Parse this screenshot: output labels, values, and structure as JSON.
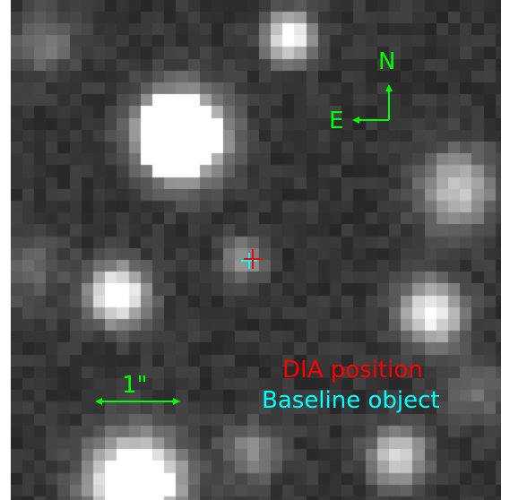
{
  "compass": {
    "north": "N",
    "east": "E"
  },
  "scale_bar": {
    "label": "1\""
  },
  "legend": {
    "dia_position": "DIA position",
    "baseline_object": "Baseline object"
  },
  "colors": {
    "annotation_green": "#00ff00",
    "dia_red": "#ff0000",
    "baseline_cyan": "#00ffff",
    "background_gray": "#2a2a2a"
  }
}
